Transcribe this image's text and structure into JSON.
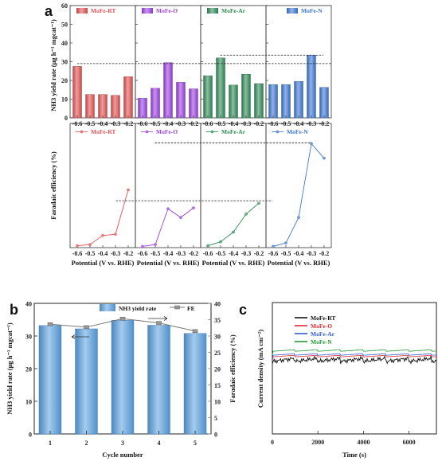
{
  "panel_labels": {
    "a": "a",
    "b": "b",
    "c": "c"
  },
  "chart_data": [
    {
      "type": "bar",
      "panel": "a",
      "ylabel": "NH3 yield rate (μg h⁻¹ mgcat⁻¹)",
      "xlabel": "Potential (V vs. RHE)",
      "ylim": [
        0,
        60
      ],
      "yticks": [
        "0",
        "10",
        "20",
        "30",
        "40",
        "50",
        "60"
      ],
      "categories": [
        "-0.6",
        "-0.5",
        "-0.4",
        "-0.3",
        "-0.2"
      ],
      "series": [
        {
          "name": "MoFe-RT",
          "color": "#e05151",
          "values": [
            27.5,
            12.5,
            12.5,
            12,
            22
          ]
        },
        {
          "name": "MoFe-O",
          "color": "#9b3fe0",
          "values": [
            10.5,
            15.8,
            29.5,
            19,
            15.5
          ]
        },
        {
          "name": "MoFe-Ar",
          "color": "#2e8b57",
          "values": [
            22.5,
            32,
            17.5,
            23.3,
            18.3
          ]
        },
        {
          "name": "MoFe-N",
          "color": "#3b77d4",
          "values": [
            17.8,
            17.8,
            19.5,
            33.5,
            16.3
          ]
        }
      ],
      "reference_lines": [
        29,
        33.5
      ]
    },
    {
      "type": "line",
      "panel": "a",
      "ylabel": "Faradaic efficiency (%)",
      "xlabel": "Potential (V vs. RHE)",
      "ylim": [
        0,
        40
      ],
      "categories": [
        "-0.6",
        "-0.5",
        "-0.4",
        "-0.3",
        "-0.2"
      ],
      "series": [
        {
          "name": "MoFe-RT",
          "color": "#e05151",
          "values": [
            0.6,
            1,
            3.9,
            4.3,
            18.6
          ]
        },
        {
          "name": "MoFe-O",
          "color": "#9b3fe0",
          "values": [
            0.4,
            1,
            12.5,
            9.7,
            12.8
          ]
        },
        {
          "name": "MoFe-Ar",
          "color": "#2e8b57",
          "values": [
            0.6,
            1.9,
            5,
            10.8,
            14.3
          ]
        },
        {
          "name": "MoFe-N",
          "color": "#3b77d4",
          "values": [
            0.4,
            1.5,
            9.7,
            33.5,
            28.8
          ]
        }
      ],
      "reference_lines": [
        15.1,
        33.7
      ]
    },
    {
      "type": "bar",
      "panel": "b",
      "xlabel": "Cycle number",
      "ylabel": "NH3 yield rate (μg h⁻¹ mgcat⁻¹)",
      "y2label": "Faradaic efficiency (%)",
      "ylim": [
        0,
        40
      ],
      "y2lim": [
        0,
        40
      ],
      "yticks": [
        "0",
        "10",
        "20",
        "30",
        "40"
      ],
      "y2ticks": [
        "0",
        "5",
        "10",
        "15",
        "20",
        "25",
        "30",
        "35",
        "40"
      ],
      "categories": [
        "1",
        "2",
        "3",
        "4",
        "5"
      ],
      "series": [
        {
          "name": "NH3 yield rate",
          "color": "#5aa0e0",
          "values": [
            33.2,
            32.2,
            34.8,
            33.3,
            30.8
          ]
        },
        {
          "name": "FE",
          "color": "#888888",
          "values": [
            33.6,
            32.7,
            35.3,
            34,
            31.5
          ]
        }
      ]
    },
    {
      "type": "line",
      "panel": "c",
      "xlabel": "Time (s)",
      "ylabel": "Current density (mA cm⁻²)",
      "xlim": [
        0,
        7200
      ],
      "xticks": [
        "0",
        "2000",
        "4000",
        "6000"
      ],
      "legend": "upper-left",
      "series": [
        {
          "name": "MoFe-RT",
          "color": "#111111"
        },
        {
          "name": "MoFe-O",
          "color": "#e0282f"
        },
        {
          "name": "MoFe-Ar",
          "color": "#2f5fd6"
        },
        {
          "name": "MoFe-N",
          "color": "#1f9a2f"
        }
      ]
    }
  ]
}
